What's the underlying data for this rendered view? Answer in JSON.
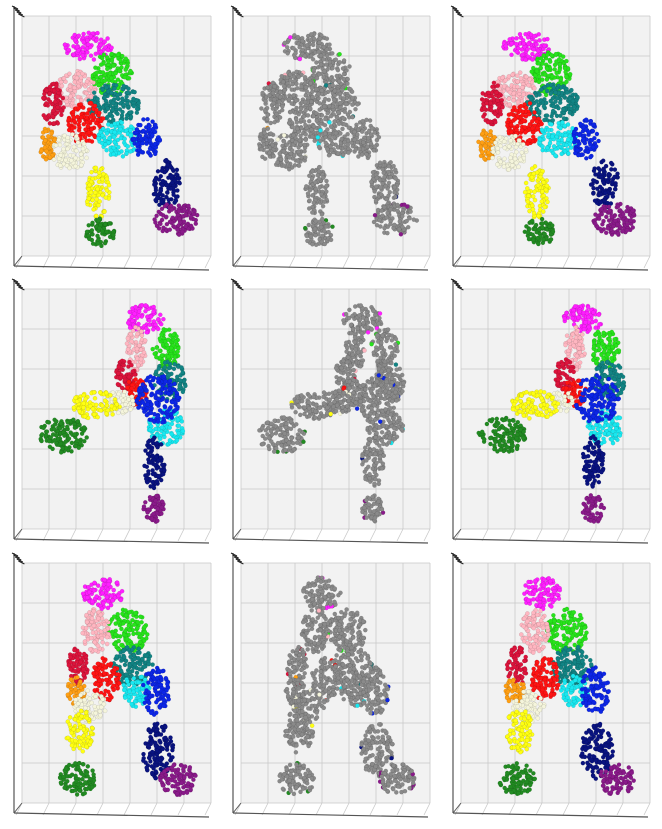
{
  "figure": {
    "rows": 3,
    "cols": 3,
    "panel_types": [
      "segmented",
      "gray-with-boundary",
      "segmented"
    ],
    "views": [
      "front",
      "side",
      "back"
    ]
  },
  "colors": {
    "head": "#ff1fff",
    "neck_left": "#27e31b",
    "torso_upper_left": "#ffb6c1",
    "torso_upper_right": "#128484",
    "arm_left_upper": "#dc143c",
    "arm_left_lower": "#ff9f13",
    "torso_mid_left": "#ff1414",
    "torso_mid_right": "#19e8f0",
    "arm_right_upper": "#0d26e6",
    "arm_right_lower": "#091380",
    "hip": "#f5f5dc",
    "leg_left_upper": "#ffff12",
    "leg_left_lower": "#228b22",
    "leg_right_lower": "#8a1a8a",
    "gray": "#8a8a8a",
    "pane": "#f2f2f2",
    "gridline": "#c8c8c8",
    "axis": "#555555"
  }
}
